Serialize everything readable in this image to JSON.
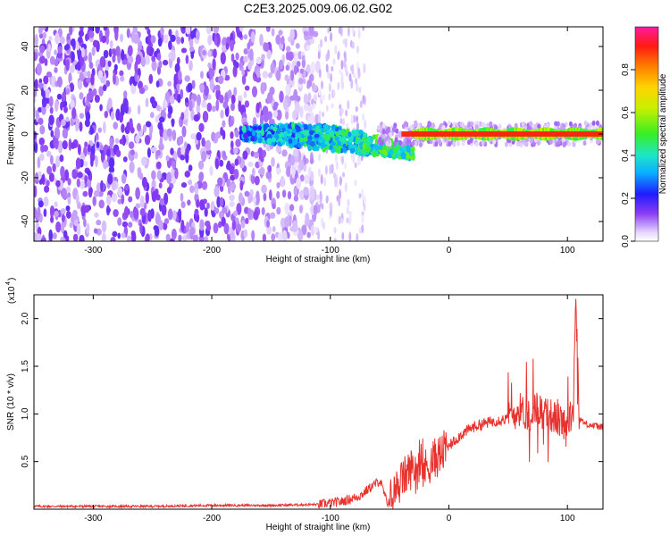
{
  "title": "C2E3.2025.009.06.02.G02",
  "colors": {
    "snr_line": "#e8322e",
    "axis": "#000000",
    "plot_bg": "#ffffff"
  },
  "chart_data": [
    {
      "type": "heatmap",
      "name": "spectrogram",
      "xlabel": "Height of straight line (km)",
      "ylabel": "Frequency (Hz)",
      "xlim": [
        -350,
        130
      ],
      "ylim": [
        -49,
        49
      ],
      "x_ticks": [
        -300,
        -200,
        -100,
        0,
        100
      ],
      "y_ticks": [
        -40,
        -20,
        0,
        20,
        40
      ],
      "colorbar": {
        "label": "Normalized spectral amplitude",
        "range": [
          0.0,
          1.0
        ],
        "ticks": [
          0.0,
          0.2,
          0.4,
          0.6,
          0.8
        ],
        "tick_labels": [
          "0.0",
          "0.2",
          "0.4",
          "0.6",
          "0.8"
        ]
      },
      "regions": [
        {
          "label": "noise",
          "x_range": [
            -350,
            -110
          ],
          "freq_range": [
            -49,
            49
          ],
          "amplitude": 0.05
        },
        {
          "label": "sparse noise",
          "x_range": [
            -110,
            -70
          ],
          "freq_range": [
            -49,
            49
          ],
          "amplitude": 0.03
        },
        {
          "label": "emerging signal",
          "x_range": [
            -175,
            -30
          ],
          "freq_center_start": 0,
          "freq_center_end": -9,
          "amplitude": 0.4
        },
        {
          "label": "tracked carrier",
          "x_range": [
            -30,
            130
          ],
          "freq_center": 0,
          "amplitude": 0.95
        }
      ]
    },
    {
      "type": "line",
      "name": "snr",
      "xlabel": "Height of straight line (km)",
      "ylabel": "SNR (10 * v/v)",
      "yscale_label": "(x10",
      "yscale_exp": "4",
      "yscale_close": ")",
      "xlim": [
        -350,
        130
      ],
      "ylim": [
        0,
        2.25
      ],
      "x_ticks": [
        -300,
        -200,
        -100,
        0,
        100
      ],
      "y_ticks": [
        0.5,
        1.0,
        1.5,
        2.0
      ],
      "y_tick_labels": [
        "0.5",
        "1.0",
        "1.5",
        "2.0"
      ],
      "series": [
        {
          "name": "SNR",
          "x": [
            -350,
            -300,
            -250,
            -200,
            -150,
            -110,
            -90,
            -75,
            -65,
            -58,
            -52,
            -50,
            -45,
            -40,
            -35,
            -30,
            -25,
            -20,
            -15,
            -10,
            -5,
            0,
            10,
            20,
            30,
            40,
            50,
            55,
            60,
            65,
            70,
            75,
            80,
            85,
            90,
            95,
            100,
            105,
            107,
            110,
            115,
            120,
            125,
            130
          ],
          "y": [
            0.03,
            0.03,
            0.03,
            0.04,
            0.04,
            0.05,
            0.08,
            0.14,
            0.24,
            0.3,
            0.06,
            0.1,
            0.2,
            0.3,
            0.38,
            0.45,
            0.4,
            0.42,
            0.5,
            0.55,
            0.6,
            0.66,
            0.78,
            0.86,
            0.9,
            0.93,
            0.95,
            1.0,
            1.05,
            1.0,
            1.0,
            1.08,
            0.98,
            1.0,
            0.95,
            0.92,
            0.9,
            1.0,
            2.25,
            0.95,
            0.9,
            0.88,
            0.87,
            0.86
          ]
        }
      ]
    }
  ]
}
